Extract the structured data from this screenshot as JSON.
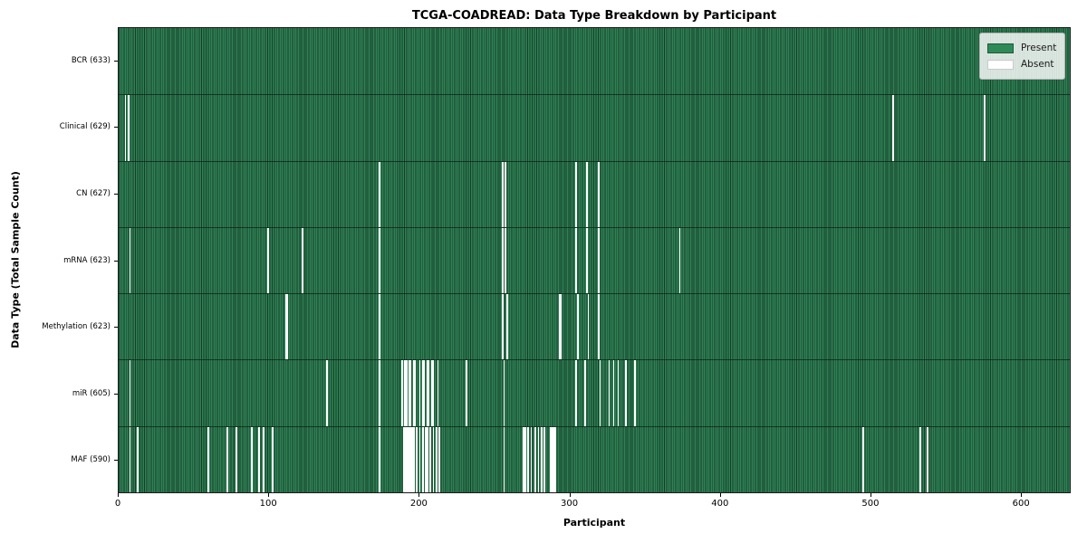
{
  "chart": {
    "title": "TCGA-COADREAD: Data Type Breakdown by Participant",
    "xlabel": "Participant",
    "ylabel": "Data Type (Total Sample Count)"
  },
  "legend": {
    "present_label": "Present",
    "absent_label": "Absent"
  },
  "colors": {
    "present_fill": "#2E8B57",
    "present_edge": "#163D26",
    "absent": "#FFFFFF",
    "plot_border": "#1A1A1A",
    "legend_background": "#E2E6E2"
  },
  "chart_data": {
    "type": "heatmap",
    "title": "TCGA-COADREAD: Data Type Breakdown by Participant",
    "xlabel": "Participant",
    "ylabel": "Data Type (Total Sample Count)",
    "x_range": [
      0,
      633
    ],
    "x_ticks": [
      0,
      100,
      200,
      300,
      400,
      500,
      600
    ],
    "total_participants": 633,
    "legend_entries": [
      "Present",
      "Absent"
    ],
    "legend_position": "upper right",
    "grid": false,
    "rows": [
      {
        "name": "BCR",
        "label": "BCR (633)",
        "count": 633,
        "absent": []
      },
      {
        "name": "Clinical",
        "label": "Clinical (629)",
        "count": 629,
        "absent": [
          4,
          6,
          515,
          576
        ]
      },
      {
        "name": "CN",
        "label": "CN (627)",
        "count": 627,
        "absent": [
          173,
          255,
          257,
          304,
          311,
          319
        ]
      },
      {
        "name": "mRNA",
        "label": "mRNA (623)",
        "count": 623,
        "absent": [
          7,
          99,
          122,
          173,
          255,
          257,
          304,
          311,
          319,
          373
        ]
      },
      {
        "name": "Methylation",
        "label": "Methylation (623)",
        "count": 623,
        "absent": [
          111,
          112,
          173,
          255,
          258,
          293,
          294,
          305,
          312,
          319
        ]
      },
      {
        "name": "miR",
        "label": "miR (605)",
        "count": 605,
        "absent": [
          7,
          138,
          173,
          188,
          190,
          191,
          193,
          194,
          196,
          197,
          200,
          202,
          203,
          205,
          206,
          208,
          209,
          212,
          231,
          256,
          304,
          310,
          320,
          326,
          329,
          332,
          337,
          343
        ]
      },
      {
        "name": "MAF",
        "label": "MAF (590)",
        "count": 590,
        "absent": [
          7,
          12,
          59,
          72,
          78,
          88,
          93,
          96,
          102,
          173,
          189,
          190,
          191,
          192,
          193,
          194,
          195,
          196,
          198,
          200,
          202,
          204,
          205,
          207,
          209,
          211,
          213,
          256,
          269,
          270,
          272,
          274,
          277,
          279,
          281,
          283,
          287,
          288,
          289,
          290,
          495,
          533,
          538
        ]
      }
    ]
  }
}
